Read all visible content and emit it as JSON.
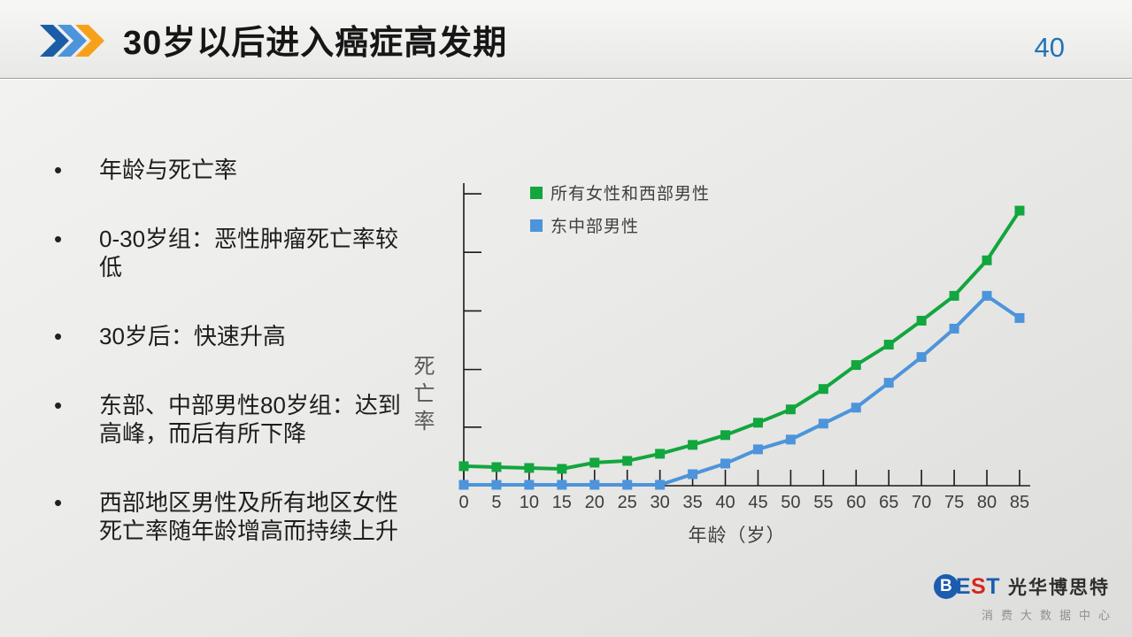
{
  "header": {
    "title": "30岁以后进入癌症高发期",
    "page_number": "40",
    "chevron_colors": [
      "#1a5da6",
      "#4d94db",
      "#f7a11a"
    ]
  },
  "bullets": [
    "年龄与死亡率",
    "0-30岁组：恶性肿瘤死亡率较低",
    "30岁后：快速升高",
    "东部、中部男性80岁组：达到高峰，而后有所下降",
    "西部地区男性及所有地区女性死亡率随年龄增高而持续上升"
  ],
  "chart_data": {
    "type": "line",
    "x": [
      0,
      5,
      10,
      15,
      20,
      25,
      30,
      35,
      40,
      45,
      50,
      55,
      60,
      65,
      70,
      75,
      80,
      85
    ],
    "xlabel": "年龄（岁）",
    "ylabel": "死亡率",
    "ylim": [
      0,
      341
    ],
    "y_tick_values": [
      66,
      131,
      197,
      263,
      329
    ],
    "y_axis_tick_labels": "none (unlabeled relative scale)",
    "grid": false,
    "marker": "square",
    "legend_position": "top-left-inside",
    "series": [
      {
        "name": "所有女性和西部男性",
        "color": "#12a63e",
        "values": [
          22,
          21,
          20,
          19,
          26,
          28,
          36,
          46,
          57,
          71,
          86,
          109,
          136,
          159,
          186,
          214,
          254,
          310
        ]
      },
      {
        "name": "东中部男性",
        "color": "#4d94db",
        "values": [
          1,
          1,
          1,
          1,
          1,
          1,
          1,
          13,
          25,
          41,
          52,
          70,
          88,
          116,
          145,
          177,
          214,
          189
        ]
      }
    ]
  },
  "footer": {
    "logo_b": "B",
    "logo_e": "E",
    "logo_s": "S",
    "logo_t": "T",
    "brand_name": "光华博思特",
    "subtitle": "消费大数据中心"
  }
}
